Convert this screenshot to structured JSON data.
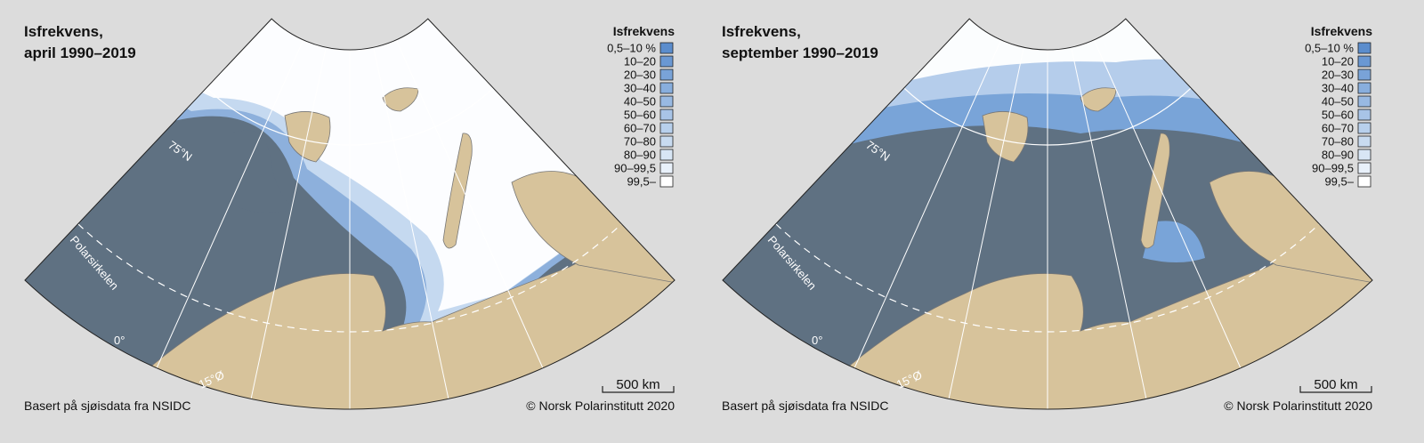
{
  "panels": [
    {
      "title": [
        "Isfrekvens,",
        "april 1990–2019"
      ],
      "legend": {
        "title": "Isfrekvens",
        "items": [
          {
            "label": "0,5–10 %",
            "color": "#5b8dcd"
          },
          {
            "label": "10–20",
            "color": "#6a98d3"
          },
          {
            "label": "20–30",
            "color": "#79a3d8"
          },
          {
            "label": "30–40",
            "color": "#88aedd"
          },
          {
            "label": "40–50",
            "color": "#98b9e2"
          },
          {
            "label": "50–60",
            "color": "#a8c4e7"
          },
          {
            "label": "60–70",
            "color": "#b8d0ec"
          },
          {
            "label": "70–80",
            "color": "#c8dbf0"
          },
          {
            "label": "80–90",
            "color": "#d8e6f5"
          },
          {
            "label": "90–99,5",
            "color": "#e9f1fa"
          },
          {
            "label": "99,5–",
            "color": "#ffffff"
          }
        ]
      },
      "map_labels": {
        "parallel": "75°N",
        "arctic_circle": "Polarsirkelen",
        "meridian_0": "0°",
        "meridian_15": "15°Ø"
      },
      "scale": "500 km",
      "source": "Basert på sjøisdata fra NSIDC",
      "credit": "© Norsk Polarinstitutt 2020"
    },
    {
      "title": [
        "Isfrekvens,",
        "september 1990–2019"
      ],
      "legend": {
        "title": "Isfrekvens",
        "items": [
          {
            "label": "0,5–10 %",
            "color": "#5b8dcd"
          },
          {
            "label": "10–20",
            "color": "#6a98d3"
          },
          {
            "label": "20–30",
            "color": "#79a3d8"
          },
          {
            "label": "30–40",
            "color": "#88aedd"
          },
          {
            "label": "40–50",
            "color": "#98b9e2"
          },
          {
            "label": "50–60",
            "color": "#a8c4e7"
          },
          {
            "label": "60–70",
            "color": "#b8d0ec"
          },
          {
            "label": "70–80",
            "color": "#c8dbf0"
          },
          {
            "label": "80–90",
            "color": "#d8e6f5"
          },
          {
            "label": "90–99,5",
            "color": "#e9f1fa"
          },
          {
            "label": "99,5–",
            "color": "#ffffff"
          }
        ]
      },
      "map_labels": {
        "parallel": "75°N",
        "arctic_circle": "Polarsirkelen",
        "meridian_0": "0°",
        "meridian_15": "15°Ø"
      },
      "scale": "500 km",
      "source": "Basert på sjøisdata fra NSIDC",
      "credit": "© Norsk Polarinstitutt 2020"
    }
  ]
}
